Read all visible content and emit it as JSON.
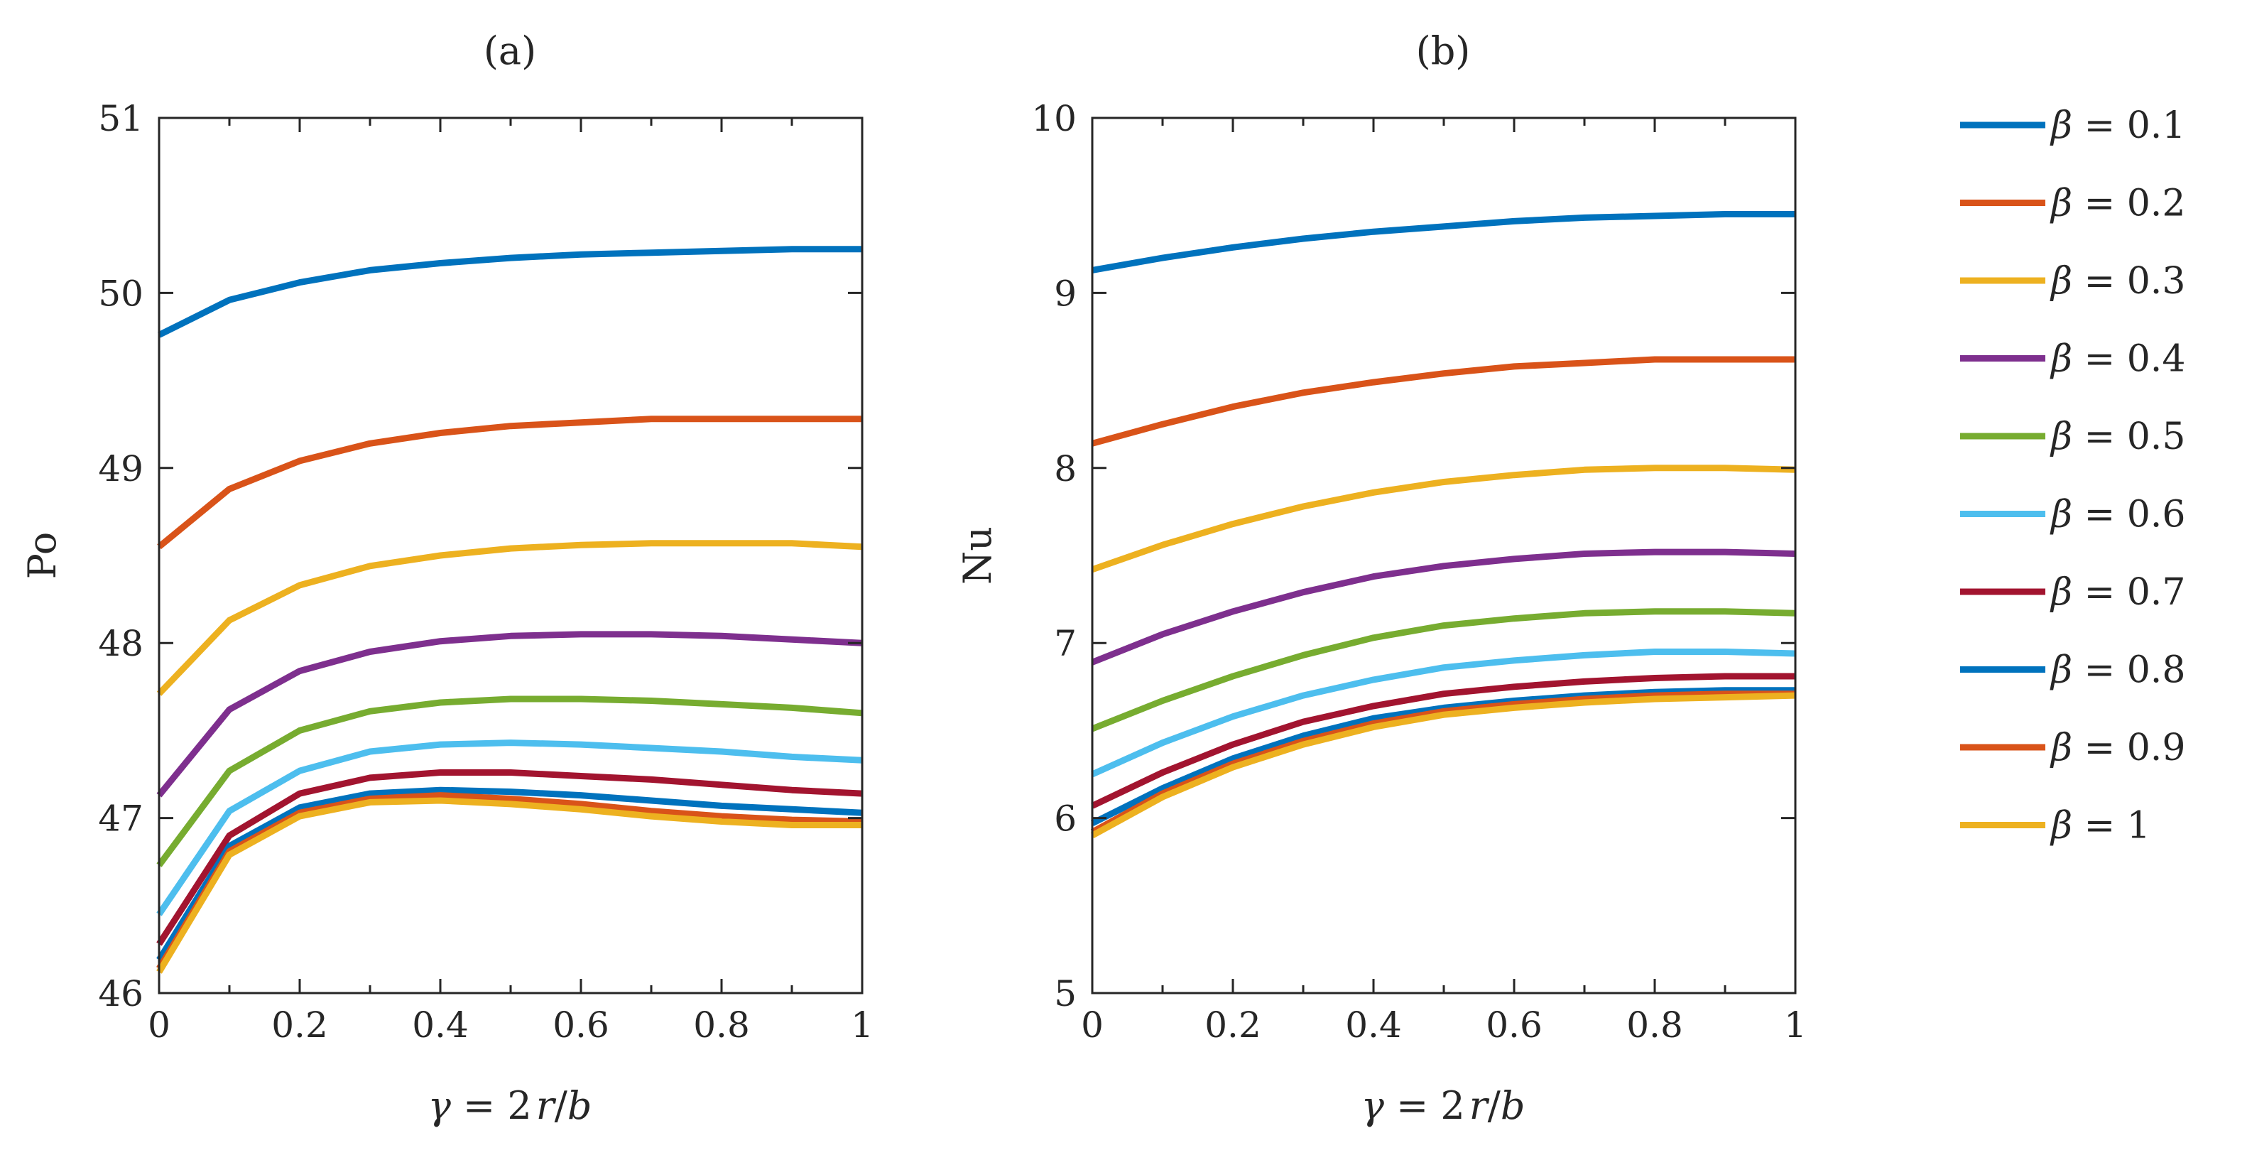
{
  "chart_data": [
    {
      "type": "line",
      "title": "(a)",
      "xlabel_parts": [
        "γ",
        " = 2",
        "r",
        "/",
        "b"
      ],
      "ylabel": "Po",
      "xlim": [
        0,
        1
      ],
      "ylim": [
        46,
        51
      ],
      "xticks": [
        0,
        0.2,
        0.4,
        0.6,
        0.8,
        1
      ],
      "xtick_labels": [
        "0",
        "0.2",
        "0.4",
        "0.6",
        "0.8",
        "1"
      ],
      "yticks": [
        46,
        47,
        48,
        49,
        50,
        51
      ],
      "ytick_labels": [
        "46",
        "47",
        "48",
        "49",
        "50",
        "51"
      ],
      "x": [
        0,
        0.1,
        0.2,
        0.3,
        0.4,
        0.5,
        0.6,
        0.7,
        0.8,
        0.9,
        1.0
      ],
      "series": [
        {
          "name": "β = 0.1",
          "values": [
            49.76,
            49.96,
            50.06,
            50.13,
            50.17,
            50.2,
            50.22,
            50.23,
            50.24,
            50.25,
            50.25
          ]
        },
        {
          "name": "β = 0.2",
          "values": [
            48.55,
            48.88,
            49.04,
            49.14,
            49.2,
            49.24,
            49.26,
            49.28,
            49.28,
            49.28,
            49.28
          ]
        },
        {
          "name": "β = 0.3",
          "values": [
            47.71,
            48.13,
            48.33,
            48.44,
            48.5,
            48.54,
            48.56,
            48.57,
            48.57,
            48.57,
            48.55
          ]
        },
        {
          "name": "β = 0.4",
          "values": [
            47.13,
            47.62,
            47.84,
            47.95,
            48.01,
            48.04,
            48.05,
            48.05,
            48.04,
            48.02,
            48.0
          ]
        },
        {
          "name": "β = 0.5",
          "values": [
            46.73,
            47.27,
            47.5,
            47.61,
            47.66,
            47.68,
            47.68,
            47.67,
            47.65,
            47.63,
            47.6
          ]
        },
        {
          "name": "β = 0.6",
          "values": [
            46.45,
            47.04,
            47.27,
            47.38,
            47.42,
            47.43,
            47.42,
            47.4,
            47.38,
            47.35,
            47.33
          ]
        },
        {
          "name": "β = 0.7",
          "values": [
            46.28,
            46.9,
            47.14,
            47.23,
            47.26,
            47.26,
            47.24,
            47.22,
            47.19,
            47.16,
            47.14
          ]
        },
        {
          "name": "β = 0.8",
          "values": [
            46.19,
            46.84,
            47.06,
            47.14,
            47.16,
            47.15,
            47.13,
            47.1,
            47.07,
            47.05,
            47.03
          ]
        },
        {
          "name": "β = 0.9",
          "values": [
            46.14,
            46.81,
            47.03,
            47.11,
            47.13,
            47.11,
            47.08,
            47.04,
            47.01,
            46.99,
            46.98
          ]
        },
        {
          "name": "β = 1",
          "values": [
            46.12,
            46.79,
            47.01,
            47.09,
            47.1,
            47.08,
            47.05,
            47.01,
            46.98,
            46.96,
            46.96
          ]
        }
      ]
    },
    {
      "type": "line",
      "title": "(b)",
      "xlabel_parts": [
        "γ",
        " = 2",
        "r",
        "/",
        "b"
      ],
      "ylabel": "Nu",
      "xlim": [
        0,
        1
      ],
      "ylim": [
        5,
        10
      ],
      "xticks": [
        0,
        0.2,
        0.4,
        0.6,
        0.8,
        1
      ],
      "xtick_labels": [
        "0",
        "0.2",
        "0.4",
        "0.6",
        "0.8",
        "1"
      ],
      "yticks": [
        5,
        6,
        7,
        8,
        9,
        10
      ],
      "ytick_labels": [
        "5",
        "6",
        "7",
        "8",
        "9",
        "10"
      ],
      "x": [
        0,
        0.1,
        0.2,
        0.3,
        0.4,
        0.5,
        0.6,
        0.7,
        0.8,
        0.9,
        1.0
      ],
      "series": [
        {
          "name": "β = 0.1",
          "values": [
            9.13,
            9.2,
            9.26,
            9.31,
            9.35,
            9.38,
            9.41,
            9.43,
            9.44,
            9.45,
            9.45
          ]
        },
        {
          "name": "β = 0.2",
          "values": [
            8.14,
            8.25,
            8.35,
            8.43,
            8.49,
            8.54,
            8.58,
            8.6,
            8.62,
            8.62,
            8.62
          ]
        },
        {
          "name": "β = 0.3",
          "values": [
            7.42,
            7.56,
            7.68,
            7.78,
            7.86,
            7.92,
            7.96,
            7.99,
            8.0,
            8.0,
            7.99
          ]
        },
        {
          "name": "β = 0.4",
          "values": [
            6.89,
            7.05,
            7.18,
            7.29,
            7.38,
            7.44,
            7.48,
            7.51,
            7.52,
            7.52,
            7.51
          ]
        },
        {
          "name": "β = 0.5",
          "values": [
            6.51,
            6.67,
            6.81,
            6.93,
            7.03,
            7.1,
            7.14,
            7.17,
            7.18,
            7.18,
            7.17
          ]
        },
        {
          "name": "β = 0.6",
          "values": [
            6.25,
            6.43,
            6.58,
            6.7,
            6.79,
            6.86,
            6.9,
            6.93,
            6.95,
            6.95,
            6.94
          ]
        },
        {
          "name": "β = 0.7",
          "values": [
            6.07,
            6.26,
            6.42,
            6.55,
            6.64,
            6.71,
            6.75,
            6.78,
            6.8,
            6.81,
            6.81
          ]
        },
        {
          "name": "β = 0.8",
          "values": [
            5.97,
            6.17,
            6.34,
            6.47,
            6.57,
            6.63,
            6.67,
            6.7,
            6.72,
            6.73,
            6.73
          ]
        },
        {
          "name": "β = 0.9",
          "values": [
            5.92,
            6.14,
            6.31,
            6.44,
            6.54,
            6.61,
            6.65,
            6.68,
            6.7,
            6.71,
            6.71
          ]
        },
        {
          "name": "β = 1",
          "values": [
            5.9,
            6.12,
            6.29,
            6.42,
            6.52,
            6.59,
            6.63,
            6.66,
            6.68,
            6.69,
            6.7
          ]
        }
      ]
    }
  ],
  "legend": {
    "location": "right",
    "entries": [
      {
        "symbol": "β",
        "value": "0.1",
        "color": "#0072BD"
      },
      {
        "symbol": "β",
        "value": "0.2",
        "color": "#D95319"
      },
      {
        "symbol": "β",
        "value": "0.3",
        "color": "#EDB120"
      },
      {
        "symbol": "β",
        "value": "0.4",
        "color": "#7E2F8E"
      },
      {
        "symbol": "β",
        "value": "0.5",
        "color": "#77AC30"
      },
      {
        "symbol": "β",
        "value": "0.6",
        "color": "#4DBEEE"
      },
      {
        "symbol": "β",
        "value": "0.7",
        "color": "#A2142F"
      },
      {
        "symbol": "β",
        "value": "0.8",
        "color": "#0072BD"
      },
      {
        "symbol": "β",
        "value": "0.9",
        "color": "#D95319"
      },
      {
        "symbol": "β",
        "value": "1",
        "color": "#EDB120"
      }
    ]
  }
}
